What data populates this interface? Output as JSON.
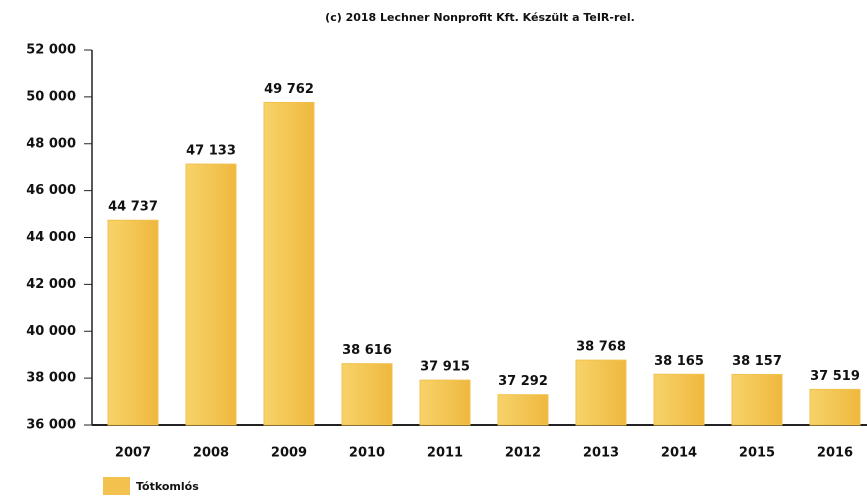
{
  "chart_data": {
    "type": "bar",
    "title": "(c) 2018 Lechner Nonprofit Kft. Készült a TeIR-rel.",
    "categories": [
      "2007",
      "2008",
      "2009",
      "2010",
      "2011",
      "2012",
      "2013",
      "2014",
      "2015",
      "2016"
    ],
    "series": [
      {
        "name": "Tótkomlós",
        "color": "#f2c14e",
        "values": [
          44737,
          47133,
          49762,
          38616,
          37915,
          37292,
          38768,
          38165,
          38157,
          37519
        ],
        "value_labels": [
          "44 737",
          "47 133",
          "49 762",
          "38 616",
          "37 915",
          "37 292",
          "38 768",
          "38 165",
          "38 157",
          "37 519"
        ]
      }
    ],
    "ylim": [
      36000,
      52000
    ],
    "yticks": [
      {
        "value": 36000,
        "label": "36 000"
      },
      {
        "value": 38000,
        "label": "38 000"
      },
      {
        "value": 40000,
        "label": "40 000"
      },
      {
        "value": 42000,
        "label": "42 000"
      },
      {
        "value": 44000,
        "label": "44 000"
      },
      {
        "value": 46000,
        "label": "46 000"
      },
      {
        "value": 48000,
        "label": "48 000"
      },
      {
        "value": 50000,
        "label": "50 000"
      },
      {
        "value": 52000,
        "label": "52 000"
      }
    ],
    "grid": false
  }
}
